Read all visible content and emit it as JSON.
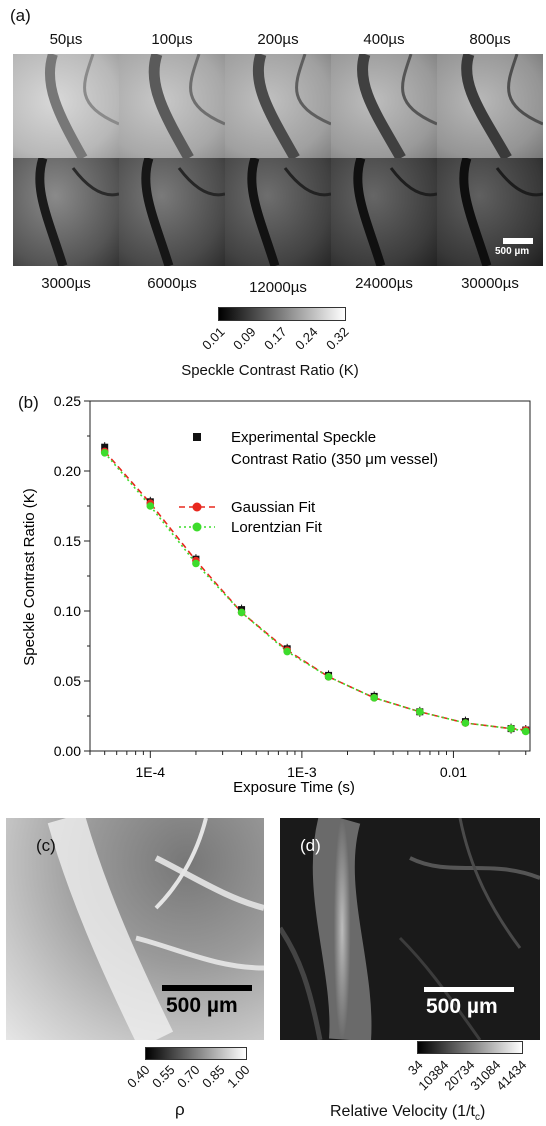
{
  "panel_a": {
    "letter": "(a)",
    "top_labels": [
      "50µs",
      "100µs",
      "200µs",
      "400µs",
      "800µs"
    ],
    "bottom_labels": [
      "3000µs",
      "6000µs",
      "12000µs",
      "24000µs",
      "30000µs"
    ],
    "scalebar_label": "500 µm",
    "colorbar": {
      "ticks": [
        "0.01",
        "0.09",
        "0.17",
        "0.24",
        "0.32"
      ],
      "title": "Speckle Contrast Ratio (K)"
    }
  },
  "panel_b": {
    "letter": "(b)"
  },
  "chart_data": {
    "type": "scatter",
    "xlabel": "Exposure Time (s)",
    "ylabel": "Speckle Contrast Ratio (K)",
    "xscale": "log",
    "xlim": [
      4e-05,
      0.032
    ],
    "ylim": [
      0,
      0.25
    ],
    "xticks": [
      0.0001,
      0.001,
      0.01
    ],
    "xtick_labels": [
      "1E-4",
      "1E-3",
      "0.01"
    ],
    "yticks": [
      0.0,
      0.05,
      0.1,
      0.15,
      0.2,
      0.25
    ],
    "ytick_labels": [
      "0.00",
      "0.05",
      "0.10",
      "0.15",
      "0.20",
      "0.25"
    ],
    "legend_position": "top-right",
    "x": [
      5e-05,
      0.0001,
      0.0002,
      0.0004,
      0.0008,
      0.0015,
      0.003,
      0.006,
      0.012,
      0.024,
      0.03
    ],
    "series": [
      {
        "name": "Experimental Speckle Contrast Ratio (350 μm vessel)",
        "legend_lines": [
          "Experimental Speckle",
          "Contrast Ratio (350 μm vessel)"
        ],
        "color": "#111111",
        "marker": "square",
        "values": [
          0.217,
          0.178,
          0.137,
          0.101,
          0.073,
          0.054,
          0.039,
          0.028,
          0.021,
          0.016,
          0.015
        ]
      },
      {
        "name": "Gaussian Fit",
        "legend_lines": [
          "Gaussian Fit"
        ],
        "color": "#e8281e",
        "marker": "circle",
        "line": "dashed",
        "values": [
          0.214,
          0.177,
          0.136,
          0.099,
          0.072,
          0.053,
          0.038,
          0.028,
          0.02,
          0.016,
          0.015
        ]
      },
      {
        "name": "Lorentzian Fit",
        "legend_lines": [
          "Lorentzian Fit"
        ],
        "color": "#3ddc2c",
        "marker": "circle",
        "line": "dotted",
        "values": [
          0.213,
          0.175,
          0.134,
          0.099,
          0.071,
          0.053,
          0.038,
          0.028,
          0.02,
          0.016,
          0.014
        ]
      }
    ]
  },
  "panel_c": {
    "letter": "(c)",
    "scalebar_label": "500 µm",
    "colorbar": {
      "ticks": [
        "0.40",
        "0.55",
        "0.70",
        "0.85",
        "1.00"
      ],
      "title": "ρ"
    }
  },
  "panel_d": {
    "letter": "(d)",
    "scalebar_label": "500 µm",
    "colorbar": {
      "ticks": [
        "34",
        "10384",
        "20734",
        "31084",
        "41434"
      ],
      "title": "Relative Velocity (1/tc)",
      "title_main": "Relative Velocity (1/t",
      "title_sub": "c",
      "title_end": ")"
    }
  }
}
